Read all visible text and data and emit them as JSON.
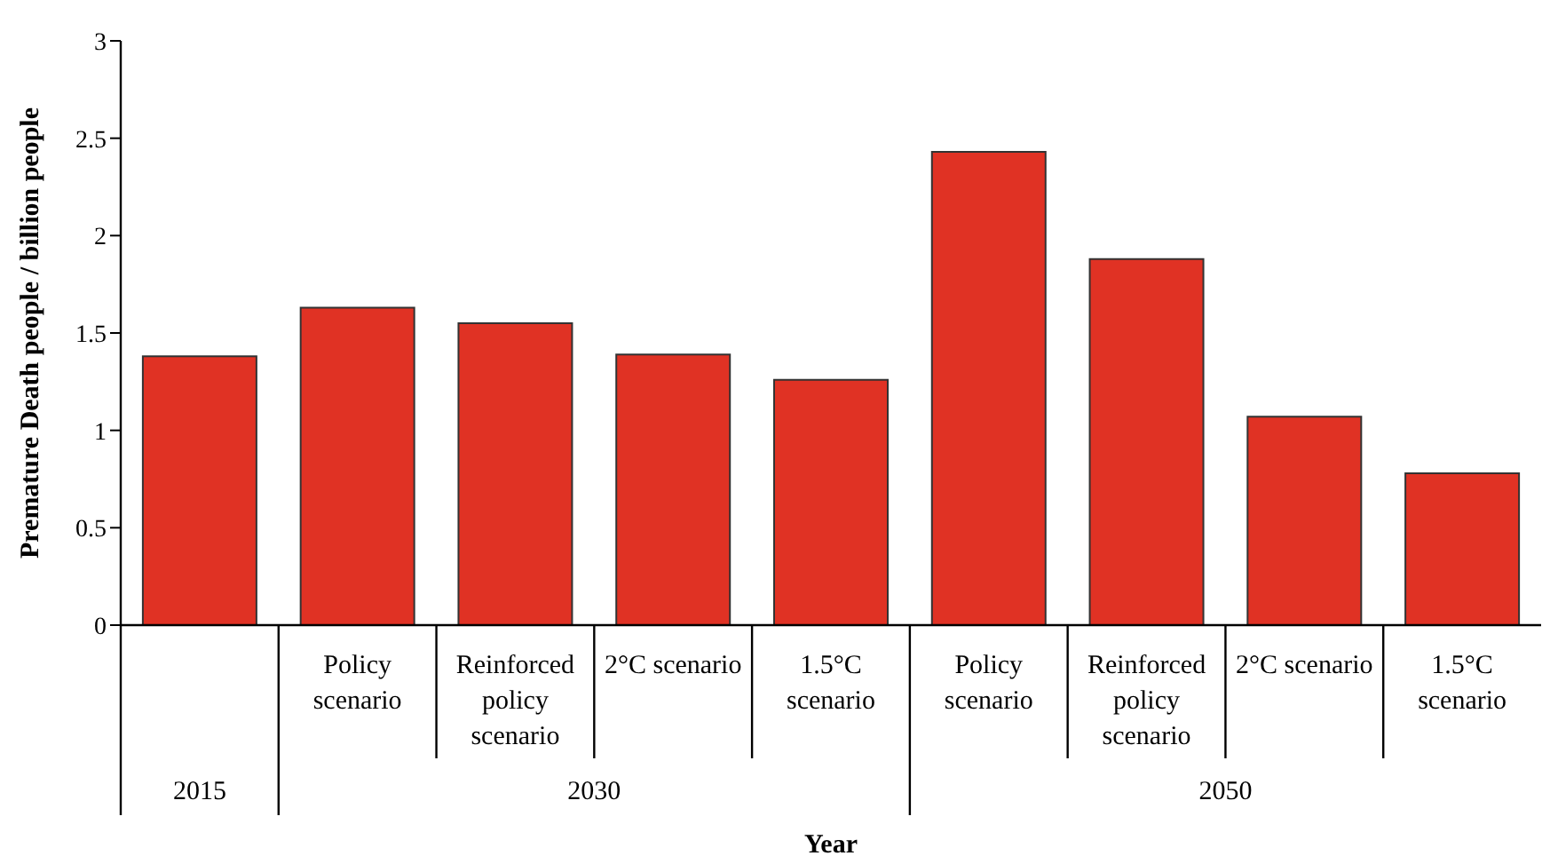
{
  "chart_data": {
    "type": "bar",
    "xlabel": "Year",
    "ylabel": "Premature Death people /  billion people",
    "categories": [
      null,
      "Policy scenario",
      "Reinforced policy scenario",
      "2°C scenario",
      "1.5°C scenario",
      "Policy scenario",
      "Reinforced policy scenario",
      "2°C scenario",
      "1.5°C scenario"
    ],
    "values": [
      1.38,
      1.63,
      1.55,
      1.39,
      1.26,
      2.43,
      1.88,
      1.07,
      0.78
    ],
    "color": "#e03224",
    "annotations": [
      "2015",
      "2030",
      "2050"
    ],
    "ylim": [
      0,
      3
    ],
    "yticks": [
      0,
      0.5,
      1,
      1.5,
      2,
      2.5,
      3
    ],
    "grid": false,
    "legend": false
  }
}
